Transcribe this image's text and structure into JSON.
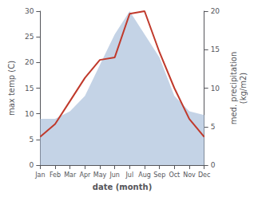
{
  "chart_data": {
    "type": "line",
    "categories": [
      "Jan",
      "Feb",
      "Mar",
      "Apr",
      "May",
      "Jun",
      "Jul",
      "Aug",
      "Sep",
      "Oct",
      "Nov",
      "Dec"
    ],
    "xlabel": "date (month)",
    "ylabel": "max temp (C)",
    "y2label": "med. precipitation\n(kg/m2)",
    "series": [
      {
        "type": "area",
        "axis": "y2",
        "color": "#b0c4de",
        "values": [
          6.0,
          6.0,
          7.0,
          9.0,
          13.0,
          17.0,
          20.0,
          17.0,
          14.0,
          9.0,
          7.0,
          6.5
        ]
      },
      {
        "type": "line",
        "color": "#c0392b",
        "values": [
          5.5,
          8.0,
          12.5,
          17.0,
          20.5,
          21.0,
          29.5,
          30.0,
          22.0,
          15.0,
          9.0,
          5.5
        ]
      }
    ],
    "ylim": [
      0,
      30
    ],
    "yticks": [
      0,
      5,
      10,
      15,
      20,
      25,
      30
    ],
    "y2lim": [
      0,
      20
    ],
    "y2ticks": [
      0,
      5,
      10,
      15,
      20
    ],
    "grid": false
  }
}
